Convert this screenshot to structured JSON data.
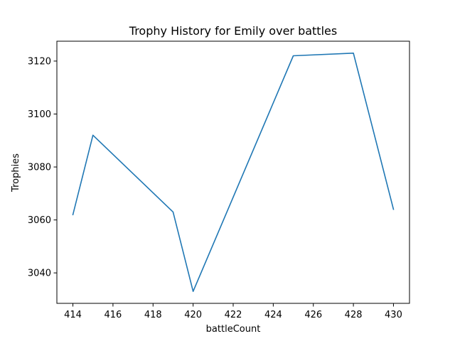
{
  "chart_data": {
    "type": "line",
    "title": "Trophy History for Emily over battles",
    "xlabel": "battleCount",
    "ylabel": "Trophies",
    "xlim": [
      413.2,
      430.8
    ],
    "ylim": [
      3028.5,
      3127.5
    ],
    "xticks": [
      414,
      416,
      418,
      420,
      422,
      424,
      426,
      428,
      430
    ],
    "yticks": [
      3040,
      3060,
      3080,
      3100,
      3120
    ],
    "grid": false,
    "series": [
      {
        "color": "#1f77b4",
        "x": [
          414,
          415,
          419,
          420,
          425,
          428,
          430
        ],
        "y": [
          3062,
          3092,
          3063,
          3033,
          3122,
          3123,
          3064
        ]
      }
    ]
  }
}
